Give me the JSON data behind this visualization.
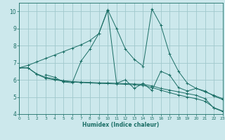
{
  "xlabel": "Humidex (Indice chaleur)",
  "xlim": [
    0,
    23
  ],
  "ylim": [
    4,
    10.5
  ],
  "xticks": [
    0,
    1,
    2,
    3,
    4,
    5,
    6,
    7,
    8,
    9,
    10,
    11,
    12,
    13,
    14,
    15,
    16,
    17,
    18,
    19,
    20,
    21,
    22,
    23
  ],
  "yticks": [
    4,
    5,
    6,
    7,
    8,
    9,
    10
  ],
  "bg_color": "#cce8ec",
  "line_color": "#1a6e65",
  "grid_color": "#a0c8cc",
  "lines": [
    {
      "x": [
        0,
        1,
        2,
        3,
        4,
        5,
        6,
        7,
        8,
        9,
        10,
        11,
        12,
        13,
        14,
        15,
        16,
        17,
        18,
        19,
        20,
        21,
        22,
        23
      ],
      "y": [
        6.7,
        6.85,
        7.05,
        7.25,
        7.45,
        7.65,
        7.85,
        8.05,
        8.3,
        8.7,
        10.1,
        9.0,
        7.8,
        7.2,
        6.8,
        10.15,
        9.2,
        7.5,
        6.5,
        5.8,
        5.5,
        5.3,
        5.1,
        4.9
      ]
    },
    {
      "x": [
        0,
        1,
        2,
        3,
        4,
        5,
        6,
        7,
        8,
        9,
        10,
        11,
        12,
        13,
        14,
        15,
        16,
        17,
        18,
        19,
        20,
        21,
        22,
        23
      ],
      "y": [
        6.7,
        6.7,
        6.35,
        6.15,
        6.05,
        5.95,
        5.9,
        5.87,
        5.85,
        5.83,
        5.82,
        5.8,
        5.78,
        5.76,
        5.74,
        5.65,
        5.5,
        5.4,
        5.3,
        5.2,
        5.1,
        4.9,
        4.35,
        4.15
      ]
    },
    {
      "x": [
        0,
        1,
        2,
        3,
        4,
        5,
        6,
        7,
        8,
        9,
        10,
        11,
        12,
        13,
        14,
        15,
        16,
        17,
        18,
        19,
        20,
        21,
        22,
        23
      ],
      "y": [
        6.7,
        6.7,
        6.32,
        6.1,
        6.0,
        5.93,
        5.88,
        5.84,
        5.82,
        5.79,
        5.78,
        5.76,
        5.74,
        5.71,
        5.68,
        5.55,
        5.4,
        5.25,
        5.12,
        5.0,
        4.9,
        4.75,
        4.38,
        4.18
      ]
    },
    {
      "x": [
        3,
        4,
        5,
        6,
        7,
        8,
        9,
        10,
        11,
        12,
        13,
        14,
        15,
        16,
        17,
        18,
        19,
        20,
        21,
        22,
        23
      ],
      "y": [
        6.3,
        6.15,
        5.88,
        5.83,
        7.1,
        7.8,
        8.7,
        10.05,
        5.8,
        6.0,
        5.5,
        5.8,
        5.38,
        6.5,
        6.28,
        5.55,
        5.35,
        5.5,
        5.35,
        5.05,
        4.85
      ]
    }
  ]
}
